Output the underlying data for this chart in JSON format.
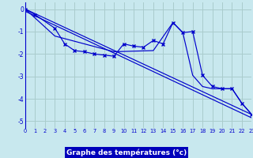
{
  "xlabel": "Graphe des températures (°c)",
  "background_color": "#c8e8ee",
  "grid_color": "#aacccc",
  "line_color": "#0000cc",
  "axis_label_bg": "#0000bb",
  "xlim": [
    0,
    23
  ],
  "ylim": [
    -5.3,
    0.3
  ],
  "xtick_vals": [
    0,
    1,
    2,
    3,
    4,
    5,
    6,
    7,
    8,
    9,
    10,
    11,
    12,
    13,
    14,
    15,
    16,
    17,
    18,
    19,
    20,
    21,
    22,
    23
  ],
  "ytick_vals": [
    0,
    -1,
    -2,
    -3,
    -4,
    -5
  ],
  "series_main_x": [
    0,
    1,
    3,
    4,
    5,
    6,
    7,
    8,
    9,
    10,
    11,
    12,
    13,
    14,
    15,
    16,
    17,
    18,
    19,
    20,
    21,
    22,
    23
  ],
  "series_main_y": [
    0.0,
    -0.25,
    -0.85,
    -1.55,
    -1.85,
    -1.9,
    -2.0,
    -2.05,
    -2.1,
    -1.55,
    -1.65,
    -1.7,
    -1.4,
    -1.55,
    -0.6,
    -1.05,
    -1.0,
    -2.95,
    -3.45,
    -3.55,
    -3.55,
    -4.2,
    -4.7
  ],
  "series_line1_x": [
    0,
    23
  ],
  "series_line1_y": [
    0.0,
    -4.7
  ],
  "series_line2_x": [
    0,
    23
  ],
  "series_line2_y": [
    -0.1,
    -4.85
  ],
  "series_line3_x": [
    0,
    3,
    9,
    13,
    15,
    16,
    17,
    18,
    19,
    20,
    21,
    22,
    23
  ],
  "series_line3_y": [
    0.0,
    -1.2,
    -1.9,
    -1.85,
    -0.6,
    -1.05,
    -2.95,
    -3.45,
    -3.55,
    -3.55,
    -3.55,
    -4.2,
    -4.7
  ]
}
